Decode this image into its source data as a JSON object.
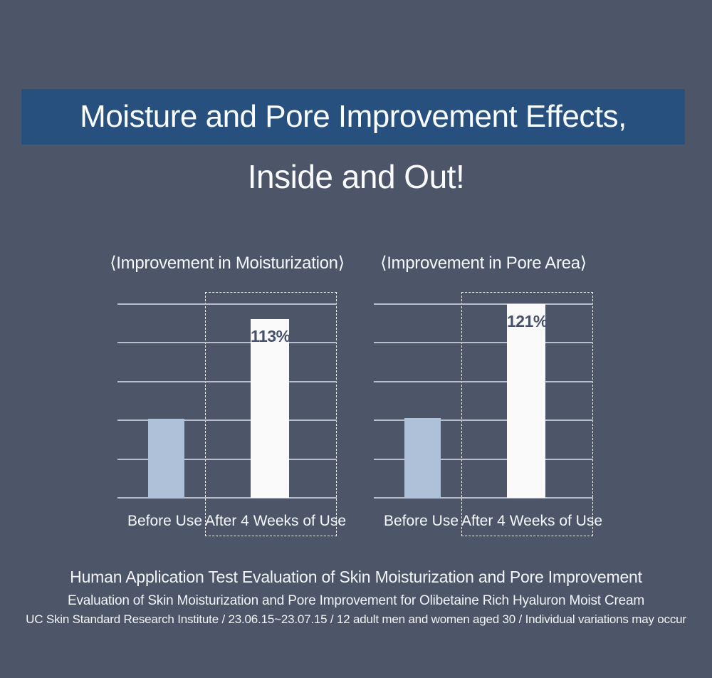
{
  "page": {
    "background_color": "#4d5669",
    "banner_color": "#27507e",
    "before_bar_color": "#afc0d9",
    "after_bar_color": "#fafafa",
    "gridline_color": "#b9bfca",
    "value_label_color": "#46526b"
  },
  "header": {
    "banner_title": "Moisture and Pore Improvement Effects,",
    "subtitle": "Inside and Out!"
  },
  "charts": [
    {
      "title": "⟨Improvement in Moisturization⟩",
      "before_label": "Before Use",
      "after_label": "After 4 Weeks of Use",
      "after_value_label": "113%"
    },
    {
      "title": "⟨Improvement in Pore Area⟩",
      "before_label": "Before Use",
      "after_label": "After 4 Weeks of Use",
      "after_value_label": "121%"
    }
  ],
  "chart_data": [
    {
      "type": "bar",
      "title": "⟨Improvement in Moisturization⟩",
      "categories": [
        "Before Use",
        "After 4 Weeks of Use"
      ],
      "values": [
        50,
        113
      ],
      "data_labels": [
        "",
        "113%"
      ],
      "unit": "%",
      "ylim": [
        0,
        125
      ],
      "gridline_interval": 25,
      "grid": true,
      "legend": false
    },
    {
      "type": "bar",
      "title": "⟨Improvement in Pore Area⟩",
      "categories": [
        "Before Use",
        "After 4 Weeks of Use"
      ],
      "values": [
        50,
        121
      ],
      "data_labels": [
        "",
        "121%"
      ],
      "unit": "%",
      "ylim": [
        0,
        125
      ],
      "gridline_interval": 25,
      "grid": true,
      "legend": false
    }
  ],
  "footer": {
    "line1": "Human Application Test Evaluation of Skin Moisturization and Pore Improvement",
    "line2": "Evaluation of Skin Moisturization and Pore Improvement for Olibetaine Rich Hyaluron Moist Cream",
    "line3": "UC Skin Standard Research Institute / 23.06.15~23.07.15 / 12 adult men and women aged 30 / Individual variations may occur"
  }
}
